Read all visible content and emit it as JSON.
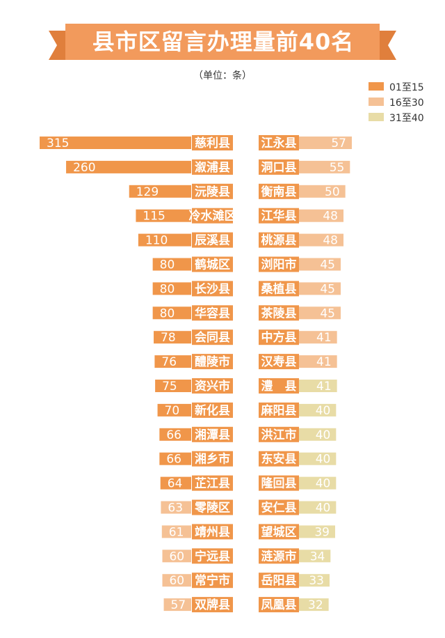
{
  "title": "县市区留言办理量前40名",
  "unit": "（单位：条）",
  "colors": {
    "rank_1_15": "#F0964A",
    "rank_16_30": "#F5C195",
    "rank_31_40": "#E8DCA6",
    "banner": "#F29A5C",
    "banner_fold": "#C8783A",
    "name_bg": "#F0964A"
  },
  "legend": [
    {
      "label": "01至15",
      "color": "#F0964A"
    },
    {
      "label": "16至30",
      "color": "#F5C195"
    },
    {
      "label": "31至40",
      "color": "#E8DCA6"
    }
  ],
  "chart_data": {
    "type": "bar",
    "title": "县市区留言办理量前40名",
    "unit": "条",
    "max_value": 315,
    "left": [
      {
        "rank": 1,
        "name": "慈利县",
        "value": 315
      },
      {
        "rank": 2,
        "name": "溆浦县",
        "value": 260
      },
      {
        "rank": 3,
        "name": "沅陵县",
        "value": 129
      },
      {
        "rank": 4,
        "name": "冷水滩区",
        "value": 115
      },
      {
        "rank": 5,
        "name": "辰溪县",
        "value": 110
      },
      {
        "rank": 6,
        "name": "鹤城区",
        "value": 80
      },
      {
        "rank": 7,
        "name": "长沙县",
        "value": 80
      },
      {
        "rank": 8,
        "name": "华容县",
        "value": 80
      },
      {
        "rank": 9,
        "name": "会同县",
        "value": 78
      },
      {
        "rank": 10,
        "name": "醴陵市",
        "value": 76
      },
      {
        "rank": 11,
        "name": "资兴市",
        "value": 75
      },
      {
        "rank": 12,
        "name": "新化县",
        "value": 70
      },
      {
        "rank": 13,
        "name": "湘潭县",
        "value": 66
      },
      {
        "rank": 14,
        "name": "湘乡市",
        "value": 66
      },
      {
        "rank": 15,
        "name": "芷江县",
        "value": 64
      },
      {
        "rank": 16,
        "name": "零陵区",
        "value": 63
      },
      {
        "rank": 17,
        "name": "靖州县",
        "value": 61
      },
      {
        "rank": 18,
        "name": "宁远县",
        "value": 60
      },
      {
        "rank": 19,
        "name": "常宁市",
        "value": 60
      },
      {
        "rank": 20,
        "name": "双牌县",
        "value": 57
      }
    ],
    "right": [
      {
        "rank": 21,
        "name": "江永县",
        "value": 57
      },
      {
        "rank": 22,
        "name": "洞口县",
        "value": 55
      },
      {
        "rank": 23,
        "name": "衡南县",
        "value": 50
      },
      {
        "rank": 24,
        "name": "江华县",
        "value": 48
      },
      {
        "rank": 25,
        "name": "桃源县",
        "value": 48
      },
      {
        "rank": 26,
        "name": "浏阳市",
        "value": 45
      },
      {
        "rank": 27,
        "name": "桑植县",
        "value": 45
      },
      {
        "rank": 28,
        "name": "茶陵县",
        "value": 45
      },
      {
        "rank": 29,
        "name": "中方县",
        "value": 41
      },
      {
        "rank": 30,
        "name": "汉寿县",
        "value": 41
      },
      {
        "rank": 31,
        "name": "澧　县",
        "value": 41
      },
      {
        "rank": 32,
        "name": "麻阳县",
        "value": 40
      },
      {
        "rank": 33,
        "name": "洪江市",
        "value": 40
      },
      {
        "rank": 34,
        "name": "东安县",
        "value": 40
      },
      {
        "rank": 35,
        "name": "隆回县",
        "value": 40
      },
      {
        "rank": 36,
        "name": "安仁县",
        "value": 40
      },
      {
        "rank": 37,
        "name": "望城区",
        "value": 39
      },
      {
        "rank": 38,
        "name": "涟源市",
        "value": 34
      },
      {
        "rank": 39,
        "name": "岳阳县",
        "value": 33
      },
      {
        "rank": 40,
        "name": "凤凰县",
        "value": 32
      }
    ]
  }
}
